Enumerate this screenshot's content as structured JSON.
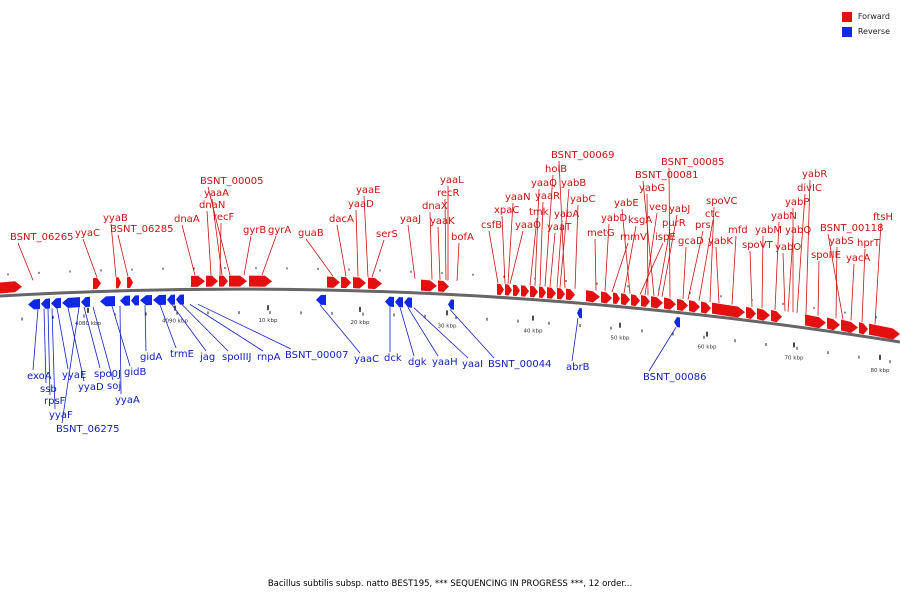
{
  "legend": {
    "forward_label": "Forward",
    "reverse_label": "Reverse",
    "forward_color": "#e41010",
    "reverse_color": "#1028e6"
  },
  "caption": "Bacillus subtilis subsp. natto BEST195, *** SEQUENCING IN PROGRESS ***, 12 order...",
  "colors": {
    "forward_text": "#d01010",
    "reverse_text": "#1020c8",
    "backbone": "#666666"
  },
  "scale_ticks": [
    {
      "label": "4080 kbp"
    },
    {
      "label": "4090 kbp"
    },
    {
      "label": "10 kbp"
    },
    {
      "label": "20 kbp"
    },
    {
      "label": "30 kbp"
    },
    {
      "label": "40 kbp"
    },
    {
      "label": "50 kbp"
    },
    {
      "label": "60 kbp"
    },
    {
      "label": "70 kbp"
    },
    {
      "label": "80 kbp"
    }
  ],
  "forward_genes": [
    "BSNT_06265",
    "yyaC",
    "yyaB",
    "BSNT_06285",
    "dnaA",
    "BSNT_00005",
    "yaaA",
    "dnaN",
    "recF",
    "gyrB",
    "gyrA",
    "guaB",
    "dacA",
    "yaaD",
    "yaaE",
    "serS",
    "yaaJ",
    "dnaX",
    "yaaK",
    "recR",
    "yaaL",
    "bofA",
    "csfB",
    "xpaC",
    "yaaN",
    "yaaO",
    "tmk",
    "yaaQ",
    "yaaR",
    "holB",
    "yaaT",
    "yabA",
    "yabB",
    "BSNT_00069",
    "yabC",
    "metG",
    "yabD",
    "rnmV",
    "ksgA",
    "yabE",
    "ispE",
    "veg",
    "yabG",
    "purR",
    "yabJ",
    "BSNT_00081",
    "BSNT_00085",
    "gcaD",
    "prs",
    "ctc",
    "spoVC",
    "yabK",
    "mfd",
    "spoVT",
    "yabM",
    "yabN",
    "yabO",
    "yabQ",
    "yabP",
    "divIC",
    "yabR",
    "spoIIE",
    "yabS",
    "BSNT_00118",
    "yacA",
    "hprT",
    "ftsH"
  ],
  "reverse_genes": [
    "exoA",
    "ssb",
    "rpsF",
    "yyaF",
    "yyaE",
    "BSNT_06275",
    "yyaD",
    "spo0J",
    "soj",
    "yyaA",
    "gidB",
    "gidA",
    "trmE",
    "jag",
    "spoIIIJ",
    "rnpA",
    "BSNT_00007",
    "yaaC",
    "dck",
    "dgk",
    "yaaH",
    "yaaI",
    "BSNT_00044",
    "abrB",
    "BSNT_00086"
  ]
}
